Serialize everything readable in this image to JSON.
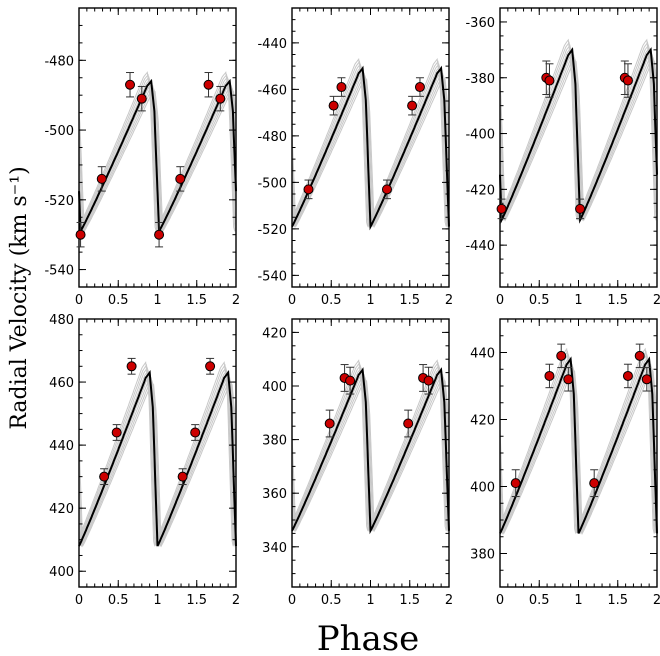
{
  "figure": {
    "ylabel": "Radial Velocity (km s⁻¹)",
    "xlabel": "Phase"
  },
  "colors": {
    "model_mean": "#000000",
    "model_grid": "#c8c8c8",
    "points": "#cc0000",
    "point_edge": "#000000"
  },
  "chart_data": [
    {
      "type": "line",
      "panel": "top-left",
      "xlim": [
        0,
        2
      ],
      "ylim": [
        -545,
        -465
      ],
      "xticks": [
        "0",
        "0.5",
        "1",
        "1.5",
        "2"
      ],
      "yticks": [
        "-540",
        "-520",
        "-500",
        "-480"
      ],
      "curve": {
        "min": -529,
        "max": -486,
        "min_phase": 0.02,
        "max_phase": 0.9
      },
      "points": [
        {
          "x": 0.02,
          "y": -530,
          "err": 3.5
        },
        {
          "x": 0.29,
          "y": -514,
          "err": 3.5
        },
        {
          "x": 0.65,
          "y": -487,
          "err": 3.5
        },
        {
          "x": 0.8,
          "y": -491,
          "err": 3.5
        },
        {
          "x": 1.02,
          "y": -530,
          "err": 3.5
        },
        {
          "x": 1.29,
          "y": -514,
          "err": 3.5
        },
        {
          "x": 1.65,
          "y": -487,
          "err": 3.5
        },
        {
          "x": 1.8,
          "y": -491,
          "err": 3.5
        }
      ]
    },
    {
      "type": "line",
      "panel": "top-middle",
      "xlim": [
        0,
        2
      ],
      "ylim": [
        -545,
        -425
      ],
      "xticks": [
        "0",
        "0.5",
        "1",
        "1.5",
        "2"
      ],
      "yticks": [
        "-540",
        "-520",
        "-500",
        "-480",
        "-460",
        "-440"
      ],
      "curve": {
        "min": -519,
        "max": -451,
        "min_phase": 0.0,
        "max_phase": 0.9
      },
      "points": [
        {
          "x": 0.21,
          "y": -503,
          "err": 4
        },
        {
          "x": 0.53,
          "y": -467,
          "err": 4
        },
        {
          "x": 0.63,
          "y": -459,
          "err": 4
        },
        {
          "x": 1.21,
          "y": -503,
          "err": 4
        },
        {
          "x": 1.53,
          "y": -467,
          "err": 4
        },
        {
          "x": 1.63,
          "y": -459,
          "err": 4
        }
      ]
    },
    {
      "type": "line",
      "panel": "top-right",
      "xlim": [
        0,
        2
      ],
      "ylim": [
        -455,
        -355
      ],
      "xticks": [
        "0",
        "0.5",
        "1",
        "1.5",
        "2"
      ],
      "yticks": [
        "-440",
        "-420",
        "-400",
        "-380",
        "-360"
      ],
      "curve": {
        "min": -431,
        "max": -370,
        "min_phase": 0.02,
        "max_phase": 0.9
      },
      "points": [
        {
          "x": 0.02,
          "y": -427,
          "err": 3.5
        },
        {
          "x": 0.59,
          "y": -380,
          "err": 6
        },
        {
          "x": 0.63,
          "y": -381,
          "err": 6
        },
        {
          "x": 1.02,
          "y": -427,
          "err": 3.5
        },
        {
          "x": 1.59,
          "y": -380,
          "err": 6
        },
        {
          "x": 1.63,
          "y": -381,
          "err": 6
        }
      ]
    },
    {
      "type": "line",
      "panel": "bottom-left",
      "xlim": [
        0,
        2
      ],
      "ylim": [
        395,
        480
      ],
      "xticks": [
        "0",
        "0.5",
        "1",
        "1.5",
        "2"
      ],
      "yticks": [
        "400",
        "420",
        "440",
        "460",
        "480"
      ],
      "curve": {
        "min": 408,
        "max": 463,
        "min_phase": 1.0,
        "max_phase": 0.9
      },
      "points": [
        {
          "x": 0.32,
          "y": 430,
          "err": 2.5
        },
        {
          "x": 0.48,
          "y": 444,
          "err": 2.5
        },
        {
          "x": 0.67,
          "y": 465,
          "err": 2.5
        },
        {
          "x": 1.32,
          "y": 430,
          "err": 2.5
        },
        {
          "x": 1.48,
          "y": 444,
          "err": 2.5
        },
        {
          "x": 1.67,
          "y": 465,
          "err": 2.5
        }
      ]
    },
    {
      "type": "line",
      "panel": "bottom-middle",
      "xlim": [
        0,
        2
      ],
      "ylim": [
        325,
        425
      ],
      "xticks": [
        "0",
        "0.5",
        "1",
        "1.5",
        "2"
      ],
      "yticks": [
        "340",
        "360",
        "380",
        "400",
        "420"
      ],
      "curve": {
        "min": 346,
        "max": 406,
        "min_phase": 1.0,
        "max_phase": 0.9
      },
      "points": [
        {
          "x": 0.48,
          "y": 386,
          "err": 5
        },
        {
          "x": 0.67,
          "y": 403,
          "err": 5
        },
        {
          "x": 0.74,
          "y": 402,
          "err": 5
        },
        {
          "x": 1.48,
          "y": 386,
          "err": 5
        },
        {
          "x": 1.67,
          "y": 403,
          "err": 5
        },
        {
          "x": 1.74,
          "y": 402,
          "err": 5
        }
      ]
    },
    {
      "type": "line",
      "panel": "bottom-right",
      "xlim": [
        0,
        2
      ],
      "ylim": [
        370,
        450
      ],
      "xticks": [
        "0",
        "0.5",
        "1",
        "1.5",
        "2"
      ],
      "yticks": [
        "380",
        "400",
        "420",
        "440"
      ],
      "curve": {
        "min": 386,
        "max": 438,
        "min_phase": 1.0,
        "max_phase": 0.9
      },
      "points": [
        {
          "x": 0.2,
          "y": 401,
          "err": 4
        },
        {
          "x": 0.63,
          "y": 433,
          "err": 3.5
        },
        {
          "x": 0.78,
          "y": 439,
          "err": 3.5
        },
        {
          "x": 0.87,
          "y": 432,
          "err": 3.5
        },
        {
          "x": 1.2,
          "y": 401,
          "err": 4
        },
        {
          "x": 1.63,
          "y": 433,
          "err": 3.5
        },
        {
          "x": 1.78,
          "y": 439,
          "err": 3.5
        },
        {
          "x": 1.87,
          "y": 432,
          "err": 3.5
        }
      ]
    }
  ]
}
